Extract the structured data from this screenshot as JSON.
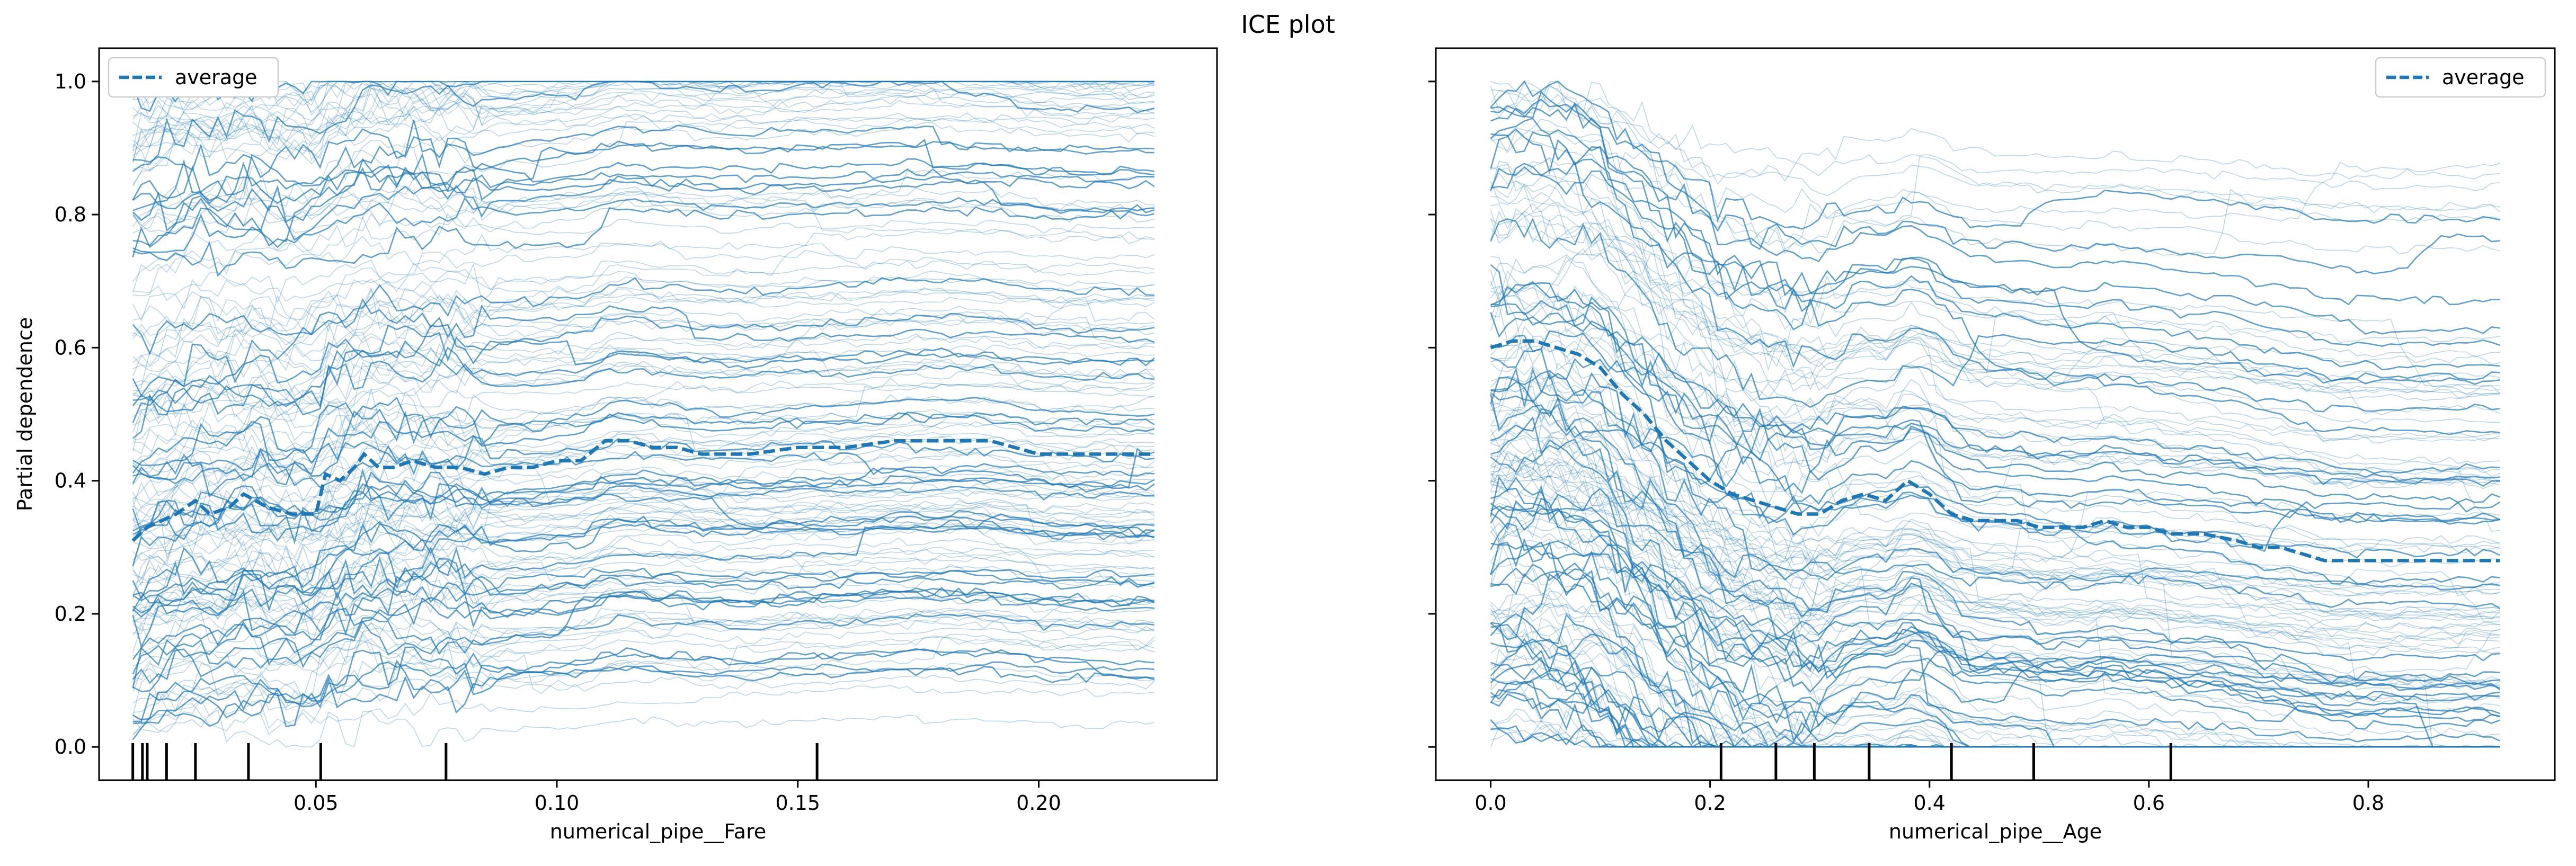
{
  "figure_title": "ICE plot",
  "colors": {
    "ice": "#1f77b4",
    "average": "#1f77b4",
    "rug": "#000000",
    "axes": "#000000"
  },
  "chart_data": [
    {
      "type": "line",
      "subtype": "ice",
      "title": "",
      "xlabel": "numerical_pipe__Fare",
      "ylabel": "Partial dependence",
      "xlim": [
        0.005,
        0.237
      ],
      "ylim": [
        -0.05,
        1.05
      ],
      "xticks": [
        0.05,
        0.1,
        0.15,
        0.2
      ],
      "xtick_labels": [
        "0.05",
        "0.10",
        "0.15",
        "0.20"
      ],
      "yticks": [
        0.0,
        0.2,
        0.4,
        0.6,
        0.8,
        1.0
      ],
      "ytick_labels": [
        "0.0",
        "0.2",
        "0.4",
        "0.6",
        "0.8",
        "1.0"
      ],
      "show_yticklabels": true,
      "legend": {
        "position": "top-left",
        "label": "average"
      },
      "average": {
        "name": "average",
        "x": [
          0.012,
          0.015,
          0.018,
          0.021,
          0.025,
          0.028,
          0.032,
          0.035,
          0.04,
          0.045,
          0.05,
          0.052,
          0.055,
          0.058,
          0.06,
          0.063,
          0.066,
          0.07,
          0.075,
          0.08,
          0.085,
          0.09,
          0.095,
          0.1,
          0.105,
          0.11,
          0.115,
          0.12,
          0.125,
          0.13,
          0.14,
          0.15,
          0.16,
          0.17,
          0.18,
          0.19,
          0.195,
          0.2,
          0.21,
          0.224
        ],
        "y": [
          0.31,
          0.33,
          0.34,
          0.35,
          0.37,
          0.35,
          0.36,
          0.38,
          0.36,
          0.35,
          0.35,
          0.41,
          0.4,
          0.42,
          0.44,
          0.42,
          0.42,
          0.43,
          0.42,
          0.42,
          0.41,
          0.42,
          0.42,
          0.43,
          0.43,
          0.46,
          0.46,
          0.45,
          0.45,
          0.44,
          0.44,
          0.45,
          0.45,
          0.46,
          0.46,
          0.46,
          0.45,
          0.44,
          0.44,
          0.44
        ]
      },
      "rug": [
        0.012,
        0.014,
        0.015,
        0.019,
        0.025,
        0.036,
        0.051,
        0.077,
        0.154
      ],
      "ice_series": 150,
      "x_range": [
        0.012,
        0.224
      ]
    },
    {
      "type": "line",
      "subtype": "ice",
      "title": "",
      "xlabel": "numerical_pipe__Age",
      "ylabel": "",
      "xlim": [
        -0.05,
        0.97
      ],
      "ylim": [
        -0.05,
        1.05
      ],
      "xticks": [
        0.0,
        0.2,
        0.4,
        0.6,
        0.8
      ],
      "xtick_labels": [
        "0.0",
        "0.2",
        "0.4",
        "0.6",
        "0.8"
      ],
      "yticks": [
        0.0,
        0.2,
        0.4,
        0.6,
        0.8,
        1.0
      ],
      "ytick_labels": [],
      "show_yticklabels": false,
      "legend": {
        "position": "top-right",
        "label": "average"
      },
      "average": {
        "name": "average",
        "x": [
          0.0,
          0.02,
          0.04,
          0.06,
          0.08,
          0.1,
          0.12,
          0.14,
          0.16,
          0.18,
          0.2,
          0.22,
          0.24,
          0.26,
          0.28,
          0.3,
          0.32,
          0.34,
          0.36,
          0.38,
          0.4,
          0.42,
          0.44,
          0.46,
          0.48,
          0.5,
          0.52,
          0.54,
          0.56,
          0.58,
          0.6,
          0.62,
          0.65,
          0.68,
          0.7,
          0.72,
          0.74,
          0.76,
          0.8,
          0.85,
          0.92
        ],
        "y": [
          0.6,
          0.61,
          0.61,
          0.6,
          0.59,
          0.57,
          0.53,
          0.5,
          0.46,
          0.43,
          0.4,
          0.38,
          0.37,
          0.36,
          0.35,
          0.35,
          0.37,
          0.38,
          0.37,
          0.4,
          0.38,
          0.35,
          0.34,
          0.34,
          0.34,
          0.33,
          0.33,
          0.33,
          0.34,
          0.33,
          0.33,
          0.32,
          0.32,
          0.31,
          0.3,
          0.3,
          0.29,
          0.28,
          0.28,
          0.28,
          0.28
        ]
      },
      "rug": [
        0.21,
        0.26,
        0.295,
        0.345,
        0.42,
        0.495,
        0.62
      ],
      "ice_series": 150,
      "x_range": [
        0.0,
        0.92
      ]
    }
  ]
}
